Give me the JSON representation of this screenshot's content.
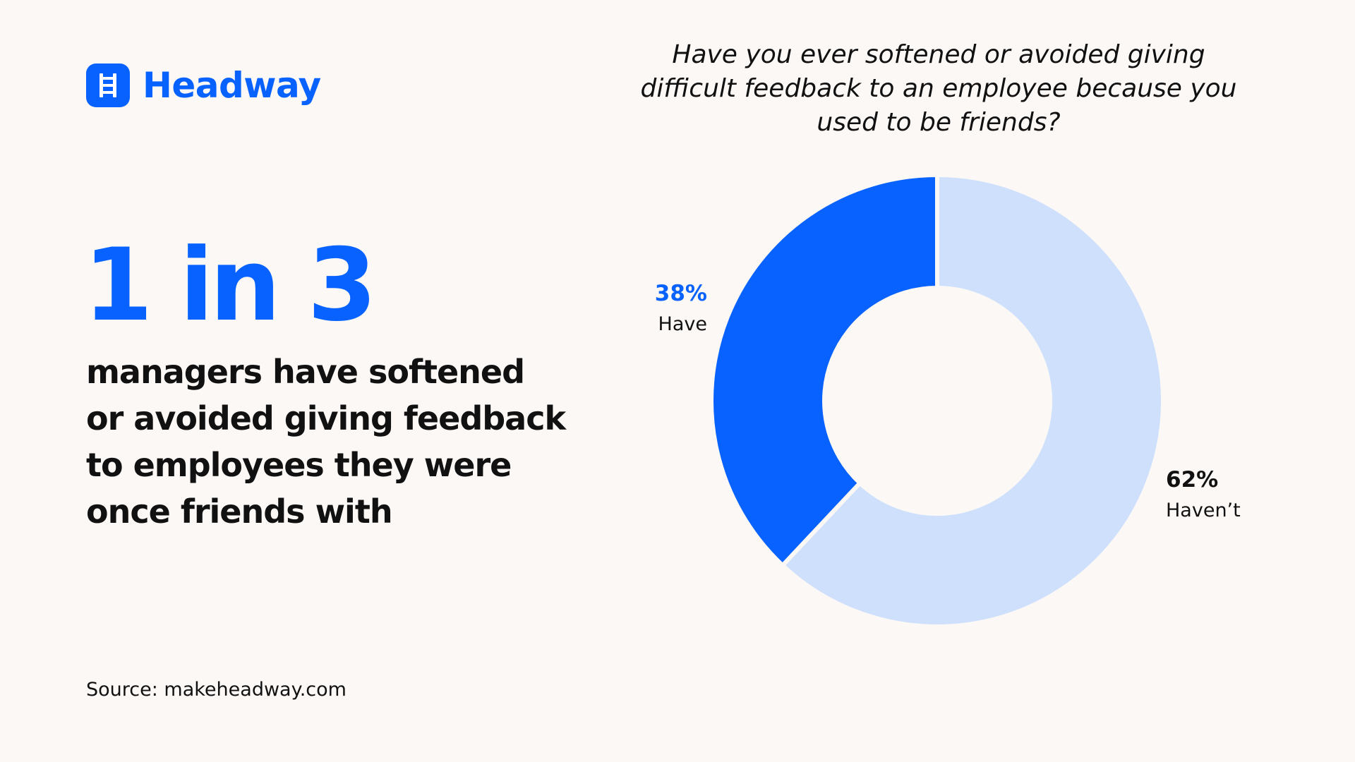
{
  "brand": {
    "name": "Headway",
    "color": "#0762ff"
  },
  "headline": {
    "stat": "1 in 3",
    "text": "managers have softened or avoided giving feedback to employees they were once friends with"
  },
  "source": "Source: makeheadway.com",
  "chart_data": {
    "type": "pie",
    "variant": "donut",
    "title": "Have you ever softened or avoided giving difficult feedback to an employee because you used to be friends?",
    "slices": [
      {
        "label": "Have",
        "value": 38,
        "value_label": "38%",
        "color": "#0762ff"
      },
      {
        "label": "Haven’t",
        "value": 62,
        "value_label": "62%",
        "color": "#cfe0fc"
      }
    ],
    "legend": "none"
  }
}
